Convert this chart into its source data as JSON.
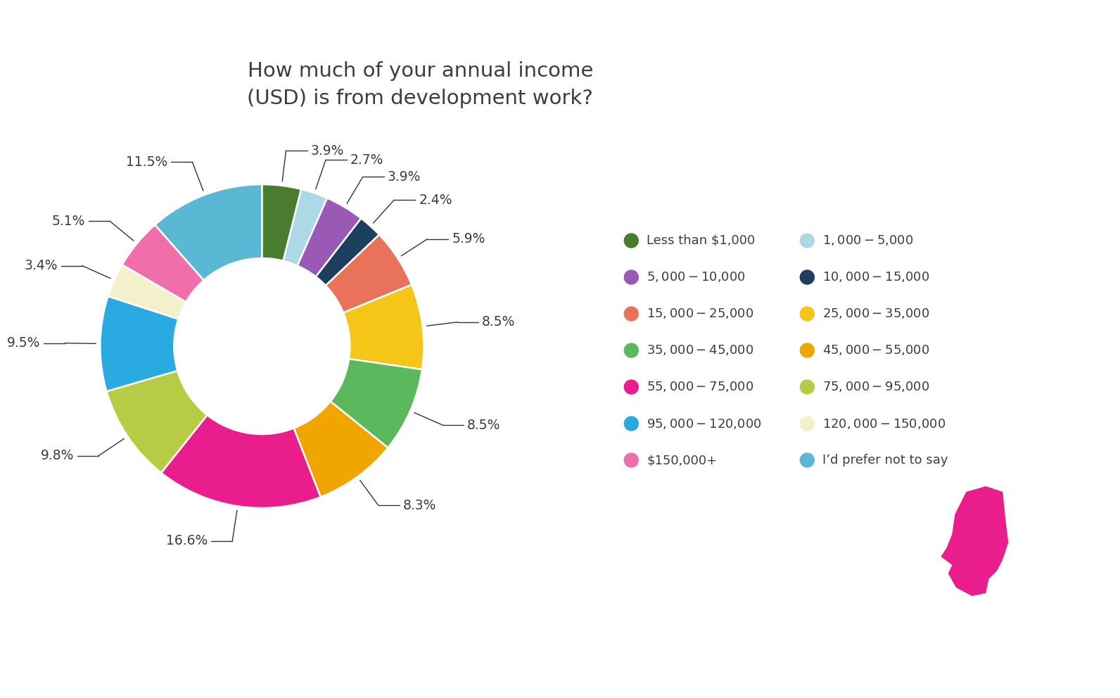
{
  "title": "How much of your annual income\n(USD) is from development work?",
  "segments": [
    {
      "label": "Less than $1,000",
      "pct": 3.9,
      "color": "#4a7c2f"
    },
    {
      "label": "$1,000-$5,000",
      "pct": 2.7,
      "color": "#add8e6"
    },
    {
      "label": "$5,000-$10,000",
      "pct": 3.9,
      "color": "#9b59b6"
    },
    {
      "label": "$10,000-$15,000",
      "pct": 2.4,
      "color": "#1c3f5e"
    },
    {
      "label": "$15,000-$25,000",
      "pct": 5.9,
      "color": "#e8735a"
    },
    {
      "label": "$25,000-$35,000",
      "pct": 8.5,
      "color": "#f5c518"
    },
    {
      "label": "$35,000-$45,000",
      "pct": 8.5,
      "color": "#5cb85c"
    },
    {
      "label": "$45,000-$55,000",
      "pct": 8.3,
      "color": "#f0a500"
    },
    {
      "label": "$55,000-$75,000",
      "pct": 16.6,
      "color": "#e91e8c"
    },
    {
      "label": "$75,000-$95,000",
      "pct": 9.8,
      "color": "#b5cc44"
    },
    {
      "label": "$95,000-$120,000",
      "pct": 9.5,
      "color": "#29abe2"
    },
    {
      "label": "$120,000-$150,000",
      "pct": 3.4,
      "color": "#f5f0cc"
    },
    {
      "label": "$150,000+",
      "pct": 5.1,
      "color": "#f06eaa"
    },
    {
      "label": "I’d prefer not to say",
      "pct": 11.5,
      "color": "#5bb8d4"
    }
  ],
  "legend_left": [
    {
      "label": "Less than $1,000",
      "color": "#4a7c2f"
    },
    {
      "label": "$5,000-$10,000",
      "color": "#9b59b6"
    },
    {
      "label": "$15,000-$25,000",
      "color": "#e8735a"
    },
    {
      "label": "$35,000-$45,000",
      "color": "#5cb85c"
    },
    {
      "label": "$55,000-$75,000",
      "color": "#e91e8c"
    },
    {
      "label": "$95,000-$120,000",
      "color": "#29abe2"
    },
    {
      "label": "$150,000+",
      "color": "#f06eaa"
    }
  ],
  "legend_right": [
    {
      "label": "$1,000-$5,000",
      "color": "#add8e6"
    },
    {
      "label": "$10,000-$15,000",
      "color": "#1c3f5e"
    },
    {
      "label": "$25,000-$35,000",
      "color": "#f5c518"
    },
    {
      "label": "$45,000-$55,000",
      "color": "#f0a500"
    },
    {
      "label": "$75,000-$95,000",
      "color": "#b5cc44"
    },
    {
      "label": "$120,000-$150,000",
      "color": "#f5f0cc"
    },
    {
      "label": "I’d prefer not to say",
      "color": "#5bb8d4"
    }
  ],
  "bg_color": "#ffffff",
  "text_color": "#3d3d3d",
  "title_fontsize": 21,
  "label_fontsize": 13.5,
  "legend_fontsize": 13,
  "head_color": "#e91e8c"
}
